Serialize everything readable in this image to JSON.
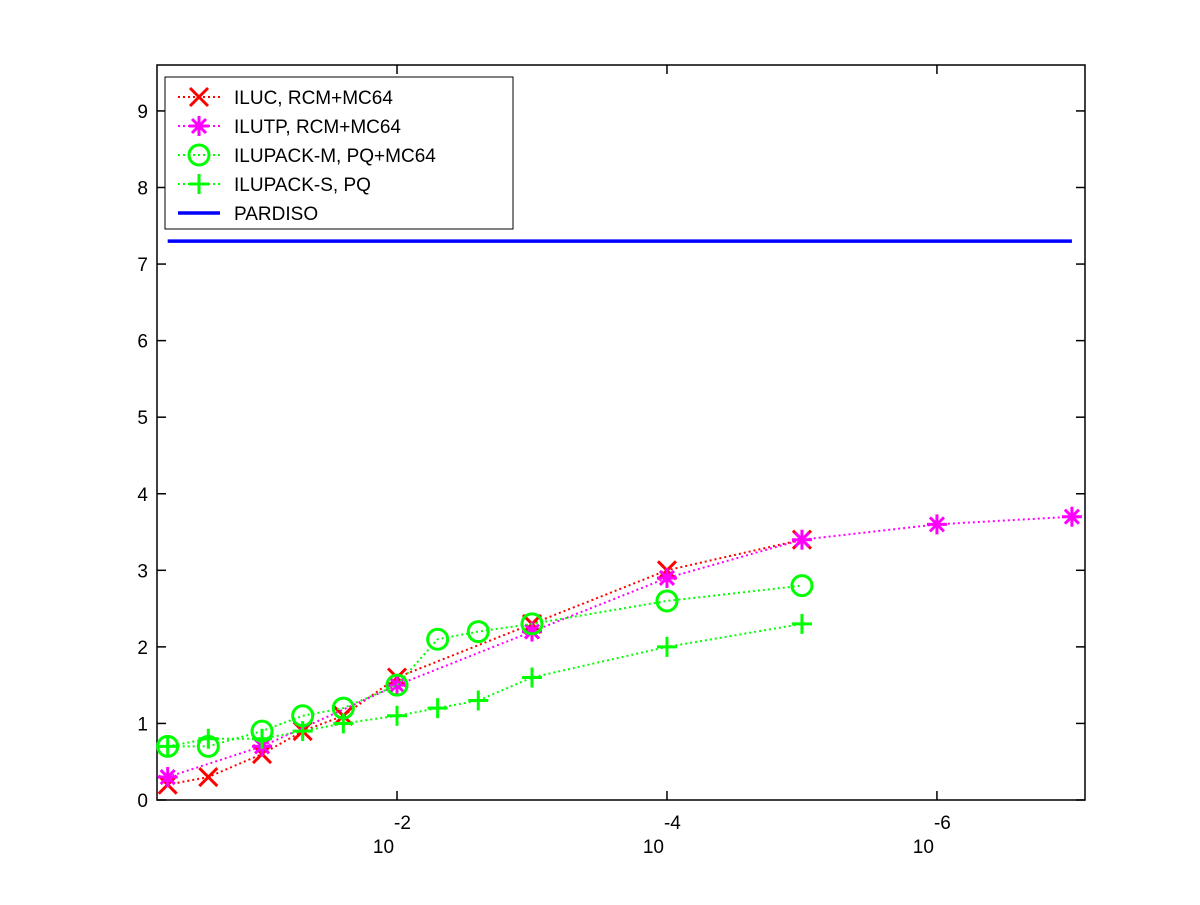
{
  "chart_data": {
    "type": "line",
    "xscale": "log",
    "xreversed": true,
    "xlim": [
      0.6,
      8e-08
    ],
    "ylim": [
      0,
      9.6
    ],
    "yticks": [
      0,
      1,
      2,
      3,
      4,
      5,
      6,
      7,
      8,
      9
    ],
    "xticks": [
      {
        "value": 0.01,
        "label": "10",
        "exponent": "-2"
      },
      {
        "value": 0.0001,
        "label": "10",
        "exponent": "-4"
      },
      {
        "value": 1e-06,
        "label": "10",
        "exponent": "-6"
      }
    ],
    "legend": "upper-left",
    "series": [
      {
        "name": "ILUC, RCM+MC64",
        "color": "#ff0000",
        "marker": "x",
        "linestyle": "dotted",
        "x": [
          0.5,
          0.25,
          0.1,
          0.05,
          0.025,
          0.01,
          0.001,
          0.0001,
          1e-05
        ],
        "values": [
          0.2,
          0.3,
          0.6,
          0.9,
          1.1,
          1.6,
          2.3,
          3.0,
          3.4
        ]
      },
      {
        "name": "ILUTP, RCM+MC64",
        "color": "#ff00ff",
        "marker": "star",
        "linestyle": "dotted",
        "x": [
          0.5,
          0.1,
          0.01,
          0.001,
          0.0001,
          1e-05,
          1e-06,
          1e-07
        ],
        "values": [
          0.3,
          0.7,
          1.5,
          2.2,
          2.9,
          3.4,
          3.6,
          3.7
        ]
      },
      {
        "name": "ILUPACK-M, PQ+MC64",
        "color": "#00ff00",
        "marker": "circle",
        "linestyle": "dotted",
        "x": [
          0.5,
          0.25,
          0.1,
          0.05,
          0.025,
          0.01,
          0.005,
          0.0025,
          0.001,
          0.0001,
          1e-05
        ],
        "values": [
          0.7,
          0.7,
          0.9,
          1.1,
          1.2,
          1.5,
          2.1,
          2.2,
          2.3,
          2.6,
          2.8
        ]
      },
      {
        "name": "ILUPACK-S, PQ",
        "color": "#00ff00",
        "marker": "plus",
        "linestyle": "dotted",
        "x": [
          0.5,
          0.25,
          0.1,
          0.05,
          0.025,
          0.01,
          0.005,
          0.0025,
          0.001,
          0.0001,
          1e-05
        ],
        "values": [
          0.7,
          0.8,
          0.8,
          0.9,
          1.0,
          1.1,
          1.2,
          1.3,
          1.6,
          2.0,
          2.3
        ]
      },
      {
        "name": "PARDISO",
        "color": "#0000ff",
        "marker": "none",
        "linestyle": "solid",
        "x": [
          0.5,
          1e-07
        ],
        "values": [
          7.3,
          7.3
        ]
      }
    ]
  }
}
